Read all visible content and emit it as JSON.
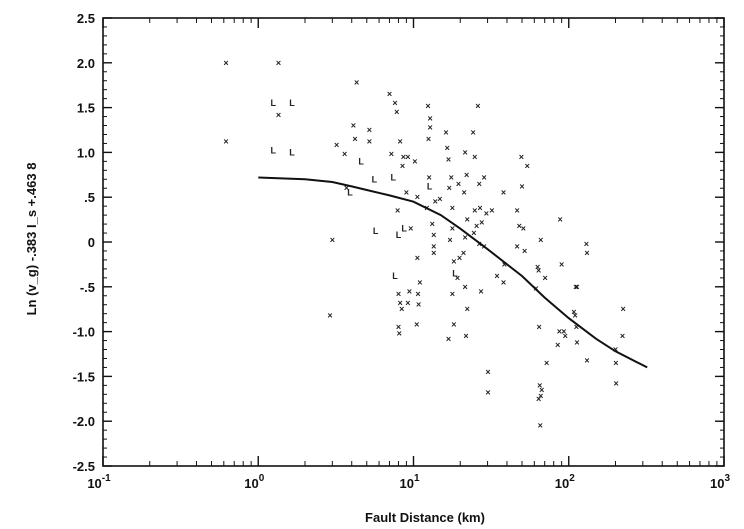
{
  "chart_data": {
    "type": "scatter",
    "title": "",
    "xlabel": "Fault  Distance (km)",
    "ylabel": "Ln (v_g) -.383 I_s +.463 8",
    "xscale": "log",
    "xlim": [
      0.1,
      1000
    ],
    "ylim": [
      -2.5,
      2.5
    ],
    "x_ticks": [
      {
        "value": 0.1,
        "base": "10",
        "exp": "-1"
      },
      {
        "value": 1,
        "base": "10",
        "exp": "0"
      },
      {
        "value": 10,
        "base": "10",
        "exp": "1"
      },
      {
        "value": 100,
        "base": "10",
        "exp": "2"
      },
      {
        "value": 1000,
        "base": "10",
        "exp": "3"
      }
    ],
    "y_ticks": [
      {
        "value": 2.5,
        "label": "2.5"
      },
      {
        "value": 2.0,
        "label": "2.0"
      },
      {
        "value": 1.5,
        "label": "1.5"
      },
      {
        "value": 1.0,
        "label": "1.0"
      },
      {
        "value": 0.5,
        "label": ".5"
      },
      {
        "value": 0,
        "label": "0"
      },
      {
        "value": -0.5,
        "label": "-.5"
      },
      {
        "value": -1.0,
        "label": "-1.0"
      },
      {
        "value": -1.5,
        "label": "-1.5"
      },
      {
        "value": -2.0,
        "label": "-2.0"
      },
      {
        "value": -2.5,
        "label": "-2.5"
      }
    ],
    "grid": false,
    "legend": "none",
    "points": [
      {
        "x": 0.62,
        "y": 2.0,
        "m": "x"
      },
      {
        "x": 0.62,
        "y": 1.12,
        "m": "x"
      },
      {
        "x": 1.35,
        "y": 2.0,
        "m": "x"
      },
      {
        "x": 1.25,
        "y": 1.55,
        "m": "L"
      },
      {
        "x": 1.35,
        "y": 1.42,
        "m": "x"
      },
      {
        "x": 1.65,
        "y": 1.55,
        "m": "L"
      },
      {
        "x": 1.25,
        "y": 1.02,
        "m": "L"
      },
      {
        "x": 1.65,
        "y": 1.0,
        "m": "L"
      },
      {
        "x": 3.2,
        "y": 1.08,
        "m": "x"
      },
      {
        "x": 3.6,
        "y": 0.98,
        "m": "x"
      },
      {
        "x": 3.0,
        "y": 0.02,
        "m": "x"
      },
      {
        "x": 2.9,
        "y": -0.82,
        "m": "x"
      },
      {
        "x": 4.3,
        "y": 1.78,
        "m": "x"
      },
      {
        "x": 4.1,
        "y": 1.3,
        "m": "x"
      },
      {
        "x": 4.2,
        "y": 1.15,
        "m": "x"
      },
      {
        "x": 3.7,
        "y": 0.6,
        "m": "x"
      },
      {
        "x": 3.9,
        "y": 0.55,
        "m": "L"
      },
      {
        "x": 5.2,
        "y": 1.25,
        "m": "x"
      },
      {
        "x": 5.2,
        "y": 1.12,
        "m": "x"
      },
      {
        "x": 4.6,
        "y": 0.9,
        "m": "L"
      },
      {
        "x": 5.6,
        "y": 0.7,
        "m": "L"
      },
      {
        "x": 5.7,
        "y": 0.12,
        "m": "L"
      },
      {
        "x": 7.0,
        "y": 1.65,
        "m": "x"
      },
      {
        "x": 7.6,
        "y": 1.55,
        "m": "x"
      },
      {
        "x": 7.8,
        "y": 1.45,
        "m": "x"
      },
      {
        "x": 7.2,
        "y": 0.98,
        "m": "x"
      },
      {
        "x": 8.2,
        "y": 1.12,
        "m": "x"
      },
      {
        "x": 8.6,
        "y": 0.95,
        "m": "x"
      },
      {
        "x": 9.2,
        "y": 0.95,
        "m": "x"
      },
      {
        "x": 8.5,
        "y": 0.85,
        "m": "x"
      },
      {
        "x": 7.4,
        "y": 0.72,
        "m": "L"
      },
      {
        "x": 9.0,
        "y": 0.55,
        "m": "x"
      },
      {
        "x": 7.9,
        "y": 0.35,
        "m": "x"
      },
      {
        "x": 8.7,
        "y": 0.15,
        "m": "L"
      },
      {
        "x": 8.0,
        "y": 0.08,
        "m": "L"
      },
      {
        "x": 9.6,
        "y": 0.15,
        "m": "x"
      },
      {
        "x": 7.6,
        "y": -0.38,
        "m": "L"
      },
      {
        "x": 8.0,
        "y": -0.58,
        "m": "x"
      },
      {
        "x": 8.2,
        "y": -0.68,
        "m": "x"
      },
      {
        "x": 8.4,
        "y": -0.75,
        "m": "x"
      },
      {
        "x": 8.0,
        "y": -0.95,
        "m": "x"
      },
      {
        "x": 8.1,
        "y": -1.02,
        "m": "x"
      },
      {
        "x": 9.2,
        "y": -0.68,
        "m": "x"
      },
      {
        "x": 9.4,
        "y": -0.55,
        "m": "x"
      },
      {
        "x": 10.2,
        "y": 0.9,
        "m": "x"
      },
      {
        "x": 10.6,
        "y": 0.5,
        "m": "x"
      },
      {
        "x": 10.6,
        "y": -0.18,
        "m": "x"
      },
      {
        "x": 11.0,
        "y": -0.45,
        "m": "x"
      },
      {
        "x": 10.7,
        "y": -0.58,
        "m": "x"
      },
      {
        "x": 10.8,
        "y": -0.7,
        "m": "x"
      },
      {
        "x": 10.5,
        "y": -0.92,
        "m": "x"
      },
      {
        "x": 12.4,
        "y": 1.52,
        "m": "x"
      },
      {
        "x": 12.8,
        "y": 1.38,
        "m": "x"
      },
      {
        "x": 12.8,
        "y": 1.28,
        "m": "x"
      },
      {
        "x": 12.5,
        "y": 1.15,
        "m": "x"
      },
      {
        "x": 12.6,
        "y": 0.72,
        "m": "x"
      },
      {
        "x": 12.7,
        "y": 0.62,
        "m": "L"
      },
      {
        "x": 12.2,
        "y": 0.38,
        "m": "x"
      },
      {
        "x": 13.2,
        "y": 0.2,
        "m": "x"
      },
      {
        "x": 13.8,
        "y": 0.45,
        "m": "x"
      },
      {
        "x": 13.5,
        "y": 0.08,
        "m": "x"
      },
      {
        "x": 13.5,
        "y": -0.05,
        "m": "x"
      },
      {
        "x": 13.5,
        "y": -0.12,
        "m": "x"
      },
      {
        "x": 14.8,
        "y": 0.48,
        "m": "x"
      },
      {
        "x": 16.2,
        "y": 1.22,
        "m": "x"
      },
      {
        "x": 16.5,
        "y": 1.05,
        "m": "x"
      },
      {
        "x": 16.8,
        "y": 0.92,
        "m": "x"
      },
      {
        "x": 17.5,
        "y": 0.72,
        "m": "x"
      },
      {
        "x": 17.0,
        "y": 0.6,
        "m": "x"
      },
      {
        "x": 17.8,
        "y": 0.38,
        "m": "x"
      },
      {
        "x": 17.8,
        "y": 0.15,
        "m": "x"
      },
      {
        "x": 17.2,
        "y": 0.02,
        "m": "x"
      },
      {
        "x": 18.2,
        "y": -0.22,
        "m": "x"
      },
      {
        "x": 18.5,
        "y": -0.35,
        "m": "L"
      },
      {
        "x": 17.8,
        "y": -0.58,
        "m": "x"
      },
      {
        "x": 18.2,
        "y": -0.92,
        "m": "x"
      },
      {
        "x": 16.8,
        "y": -1.08,
        "m": "x"
      },
      {
        "x": 19.5,
        "y": 0.65,
        "m": "x"
      },
      {
        "x": 19.2,
        "y": -0.4,
        "m": "x"
      },
      {
        "x": 19.8,
        "y": -0.18,
        "m": "x"
      },
      {
        "x": 21.5,
        "y": 1.0,
        "m": "x"
      },
      {
        "x": 22.0,
        "y": 0.75,
        "m": "x"
      },
      {
        "x": 21.2,
        "y": 0.55,
        "m": "x"
      },
      {
        "x": 22.2,
        "y": 0.25,
        "m": "x"
      },
      {
        "x": 21.5,
        "y": 0.05,
        "m": "x"
      },
      {
        "x": 21.0,
        "y": -0.12,
        "m": "x"
      },
      {
        "x": 21.5,
        "y": -0.5,
        "m": "x"
      },
      {
        "x": 22.2,
        "y": -0.75,
        "m": "x"
      },
      {
        "x": 21.8,
        "y": -1.05,
        "m": "x"
      },
      {
        "x": 24.2,
        "y": 1.22,
        "m": "x"
      },
      {
        "x": 24.8,
        "y": 0.95,
        "m": "x"
      },
      {
        "x": 24.8,
        "y": 0.35,
        "m": "x"
      },
      {
        "x": 25.5,
        "y": 0.18,
        "m": "x"
      },
      {
        "x": 24.5,
        "y": 0.1,
        "m": "x"
      },
      {
        "x": 26.0,
        "y": 1.52,
        "m": "x"
      },
      {
        "x": 26.5,
        "y": 0.65,
        "m": "x"
      },
      {
        "x": 26.8,
        "y": 0.38,
        "m": "x"
      },
      {
        "x": 27.5,
        "y": 0.22,
        "m": "x"
      },
      {
        "x": 26.5,
        "y": -0.02,
        "m": "x"
      },
      {
        "x": 27.2,
        "y": -0.55,
        "m": "x"
      },
      {
        "x": 28.5,
        "y": 0.72,
        "m": "x"
      },
      {
        "x": 29.5,
        "y": 0.32,
        "m": "x"
      },
      {
        "x": 28.5,
        "y": -0.05,
        "m": "x"
      },
      {
        "x": 30.2,
        "y": -1.45,
        "m": "x"
      },
      {
        "x": 30.2,
        "y": -1.68,
        "m": "x"
      },
      {
        "x": 32.0,
        "y": 0.35,
        "m": "x"
      },
      {
        "x": 34.5,
        "y": -0.38,
        "m": "x"
      },
      {
        "x": 38.0,
        "y": 0.55,
        "m": "x"
      },
      {
        "x": 38.5,
        "y": -0.25,
        "m": "x"
      },
      {
        "x": 38.0,
        "y": -0.45,
        "m": "x"
      },
      {
        "x": 46.5,
        "y": 0.35,
        "m": "x"
      },
      {
        "x": 48.0,
        "y": 0.18,
        "m": "x"
      },
      {
        "x": 46.5,
        "y": -0.05,
        "m": "x"
      },
      {
        "x": 49.5,
        "y": 0.95,
        "m": "x"
      },
      {
        "x": 50.0,
        "y": 0.62,
        "m": "x"
      },
      {
        "x": 51.0,
        "y": 0.15,
        "m": "x"
      },
      {
        "x": 52.0,
        "y": -0.1,
        "m": "x"
      },
      {
        "x": 54.0,
        "y": 0.85,
        "m": "x"
      },
      {
        "x": 63.0,
        "y": -0.28,
        "m": "x"
      },
      {
        "x": 64.0,
        "y": -0.32,
        "m": "x"
      },
      {
        "x": 61.5,
        "y": -0.52,
        "m": "x"
      },
      {
        "x": 66.0,
        "y": 0.02,
        "m": "x"
      },
      {
        "x": 64.5,
        "y": -0.95,
        "m": "x"
      },
      {
        "x": 65.0,
        "y": -1.6,
        "m": "x"
      },
      {
        "x": 64.0,
        "y": -1.75,
        "m": "x"
      },
      {
        "x": 65.5,
        "y": -2.05,
        "m": "x"
      },
      {
        "x": 67.0,
        "y": -1.65,
        "m": "x"
      },
      {
        "x": 66.0,
        "y": -1.72,
        "m": "x"
      },
      {
        "x": 70.5,
        "y": -0.4,
        "m": "x"
      },
      {
        "x": 72.0,
        "y": -1.35,
        "m": "x"
      },
      {
        "x": 85.0,
        "y": -1.15,
        "m": "x"
      },
      {
        "x": 87.0,
        "y": -1.0,
        "m": "x"
      },
      {
        "x": 88.0,
        "y": 0.25,
        "m": "x"
      },
      {
        "x": 90.0,
        "y": -0.25,
        "m": "x"
      },
      {
        "x": 93.0,
        "y": -1.0,
        "m": "x"
      },
      {
        "x": 95.0,
        "y": -1.05,
        "m": "x"
      },
      {
        "x": 108.0,
        "y": -0.78,
        "m": "x"
      },
      {
        "x": 110.0,
        "y": -0.82,
        "m": "x"
      },
      {
        "x": 111.0,
        "y": -0.5,
        "m": "x"
      },
      {
        "x": 113.0,
        "y": -0.5,
        "m": "x"
      },
      {
        "x": 112.0,
        "y": -0.95,
        "m": "x"
      },
      {
        "x": 113.0,
        "y": -1.12,
        "m": "x"
      },
      {
        "x": 130.0,
        "y": -0.02,
        "m": "x"
      },
      {
        "x": 131.0,
        "y": -0.12,
        "m": "x"
      },
      {
        "x": 131.0,
        "y": -1.32,
        "m": "x"
      },
      {
        "x": 200.0,
        "y": -1.2,
        "m": "x"
      },
      {
        "x": 201.0,
        "y": -1.35,
        "m": "x"
      },
      {
        "x": 202.0,
        "y": -1.58,
        "m": "x"
      },
      {
        "x": 224.0,
        "y": -0.75,
        "m": "x"
      },
      {
        "x": 222.0,
        "y": -1.05,
        "m": "x"
      }
    ],
    "curve": [
      {
        "x": 1.0,
        "y": 0.72
      },
      {
        "x": 2.0,
        "y": 0.7
      },
      {
        "x": 3.0,
        "y": 0.67
      },
      {
        "x": 4.0,
        "y": 0.62
      },
      {
        "x": 5.0,
        "y": 0.58
      },
      {
        "x": 7.0,
        "y": 0.52
      },
      {
        "x": 10.0,
        "y": 0.45
      },
      {
        "x": 15.0,
        "y": 0.3
      },
      {
        "x": 20.0,
        "y": 0.15
      },
      {
        "x": 30.0,
        "y": -0.08
      },
      {
        "x": 50.0,
        "y": -0.38
      },
      {
        "x": 70.0,
        "y": -0.62
      },
      {
        "x": 100.0,
        "y": -0.85
      },
      {
        "x": 150.0,
        "y": -1.08
      },
      {
        "x": 200.0,
        "y": -1.22
      },
      {
        "x": 320.0,
        "y": -1.4
      }
    ]
  }
}
